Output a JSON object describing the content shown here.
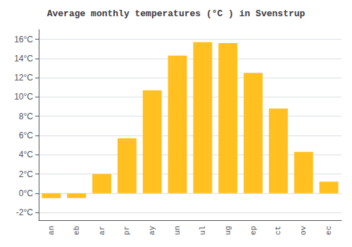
{
  "chart_data": {
    "type": "bar",
    "title": "Average monthly temperatures (°C ) in Svenstrup",
    "categories": [
      "an",
      "eb",
      "ar",
      "pr",
      "ay",
      "un",
      "ul",
      "ug",
      "ep",
      "ct",
      "ov",
      "ec"
    ],
    "values": [
      -0.5,
      -0.5,
      2.0,
      5.7,
      10.7,
      14.3,
      15.7,
      15.6,
      12.5,
      8.8,
      4.3,
      1.2
    ],
    "color": "#FFC020",
    "ylim": [
      -2.8,
      17.0
    ],
    "yticks": [
      {
        "value": -2,
        "label": "-2°C"
      },
      {
        "value": 0,
        "label": "0°C"
      },
      {
        "value": 2,
        "label": "2°C"
      },
      {
        "value": 4,
        "label": "4°C"
      },
      {
        "value": 6,
        "label": "6°C"
      },
      {
        "value": 8,
        "label": "8°C"
      },
      {
        "value": 10,
        "label": "10°C"
      },
      {
        "value": 12,
        "label": "12°C"
      },
      {
        "value": 14,
        "label": "14°C"
      },
      {
        "value": 16,
        "label": "16°C"
      }
    ],
    "grid": true
  }
}
